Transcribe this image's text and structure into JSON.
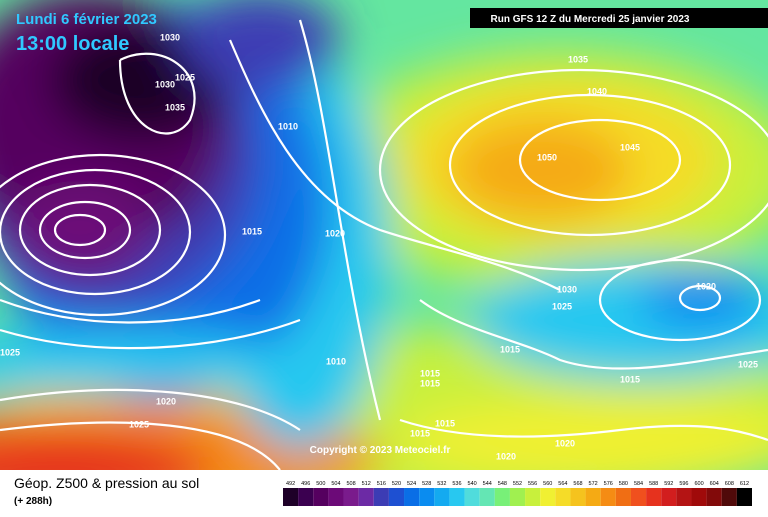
{
  "header": {
    "date": "Lundi 6 février 2023",
    "time": "13:00 locale",
    "run": "Run GFS 12 Z du Mercredi 25 janvier 2023"
  },
  "isobars": [
    "1030",
    "1025",
    "1030",
    "1035",
    "1010",
    "1035",
    "1040",
    "1050",
    "1045",
    "1015",
    "1020",
    "1030",
    "1025",
    "1020",
    "1015",
    "1010",
    "1015",
    "1015",
    "1015",
    "1025",
    "1025",
    "1020",
    "1025",
    "1015",
    "1015",
    "1020",
    "1020"
  ],
  "copyright": "Copyright © 2023 Meteociel.fr",
  "caption": {
    "title": "Géop. Z500 & pression au sol",
    "lead": "(+ 288h)"
  },
  "legend": {
    "items": [
      {
        "value": 492,
        "color": "#1e0028"
      },
      {
        "value": 496,
        "color": "#3b0050"
      },
      {
        "value": 500,
        "color": "#55005f"
      },
      {
        "value": 504,
        "color": "#6c0a78"
      },
      {
        "value": 508,
        "color": "#7a1b8c"
      },
      {
        "value": 512,
        "color": "#6c2aa5"
      },
      {
        "value": 516,
        "color": "#3c3cb4"
      },
      {
        "value": 520,
        "color": "#1e50d2"
      },
      {
        "value": 524,
        "color": "#0a6ee6"
      },
      {
        "value": 528,
        "color": "#0a8cf0"
      },
      {
        "value": 532,
        "color": "#14aaf0"
      },
      {
        "value": 536,
        "color": "#28c8f0"
      },
      {
        "value": 540,
        "color": "#50dcdc"
      },
      {
        "value": 544,
        "color": "#64e6b4"
      },
      {
        "value": 548,
        "color": "#78f078"
      },
      {
        "value": 552,
        "color": "#a0f050"
      },
      {
        "value": 556,
        "color": "#c8f03c"
      },
      {
        "value": 560,
        "color": "#f0f032"
      },
      {
        "value": 564,
        "color": "#f5dc28"
      },
      {
        "value": 568,
        "color": "#f5c31e"
      },
      {
        "value": 572,
        "color": "#f5aa14"
      },
      {
        "value": 576,
        "color": "#f58c14"
      },
      {
        "value": 580,
        "color": "#f06e14"
      },
      {
        "value": 584,
        "color": "#f0501e"
      },
      {
        "value": 588,
        "color": "#e6321e"
      },
      {
        "value": 592,
        "color": "#d21e1e"
      },
      {
        "value": 596,
        "color": "#b41414"
      },
      {
        "value": 600,
        "color": "#a00a0a"
      },
      {
        "value": 604,
        "color": "#820a0a"
      },
      {
        "value": 608,
        "color": "#500a0a"
      },
      {
        "value": 612,
        "color": "#000000"
      }
    ]
  }
}
